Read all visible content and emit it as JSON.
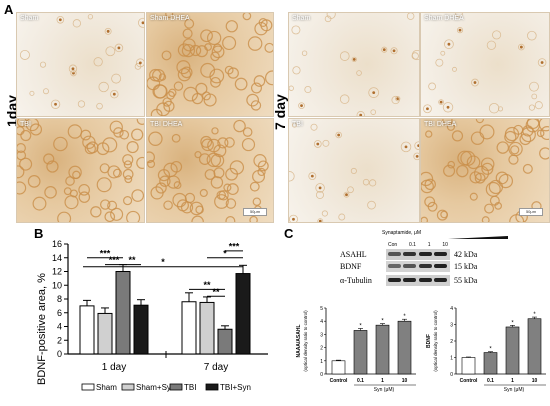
{
  "panels": {
    "A": "A",
    "B": "B",
    "C": "C"
  },
  "panel_a": {
    "row_1day": "1day",
    "row_7day": "7 day",
    "tiles_1day": [
      "Sham",
      "Sham DHEA",
      "TBI",
      "TBI DHEA"
    ],
    "tiles_7day": [
      "Sham",
      "Sham DHEA",
      "TBI",
      "TBI DHEA"
    ],
    "scale_label": "50μm",
    "colors": {
      "background_light": "#efe7da",
      "background_dense": "#e3c9a1",
      "cell": "#c98f4a"
    }
  },
  "chart_data": [
    {
      "type": "bar",
      "panel": "B",
      "ylabel": "BDNF-positive area, %",
      "ylim": [
        0,
        16
      ],
      "yticks": [
        0,
        2,
        4,
        6,
        8,
        10,
        12,
        14,
        16
      ],
      "groups": [
        "1 day",
        "7 day"
      ],
      "series": [
        {
          "name": "Sham",
          "color": "#ffffff",
          "values": [
            7.0,
            7.6
          ],
          "errors": [
            0.8,
            1.3
          ]
        },
        {
          "name": "Sham+Syn",
          "color": "#d0d0d0",
          "values": [
            5.9,
            7.5
          ],
          "errors": [
            0.8,
            0.8
          ]
        },
        {
          "name": "TBI",
          "color": "#7a7a7a",
          "values": [
            12.0,
            3.6
          ],
          "errors": [
            1.0,
            0.5
          ]
        },
        {
          "name": "TBI+Syn",
          "color": "#1a1a1a",
          "values": [
            7.1,
            11.7
          ],
          "errors": [
            0.8,
            1.2
          ]
        }
      ],
      "significance_1day": [
        "***",
        "***",
        "**"
      ],
      "significance_7day": [
        "***",
        "*",
        "*",
        "**",
        "**"
      ],
      "legend": [
        "Sham",
        "Sham+Syn",
        "TBI",
        "TBI+Syn"
      ]
    },
    {
      "type": "bar",
      "panel": "C-left",
      "ylabel": "NAAA/ASAHL",
      "ylabel2": "(optical density ratio to control)",
      "xlabel": "Syn (μM)",
      "categories": [
        "Control",
        "0.1",
        "1",
        "10"
      ],
      "values": [
        1.0,
        3.3,
        3.7,
        4.0
      ],
      "errors": [
        0.05,
        0.15,
        0.12,
        0.15
      ],
      "ylim": [
        0,
        5
      ],
      "yticks": [
        0,
        1,
        2,
        3,
        4,
        5
      ],
      "marks": [
        "",
        "*",
        "*",
        "*"
      ]
    },
    {
      "type": "bar",
      "panel": "C-right",
      "ylabel": "BDNF",
      "ylabel2": "(optical density ratio to control)",
      "xlabel": "Syn (μM)",
      "categories": [
        "Control",
        "0.1",
        "1",
        "10"
      ],
      "values": [
        1.0,
        1.3,
        2.85,
        3.35
      ],
      "errors": [
        0.03,
        0.05,
        0.1,
        0.1
      ],
      "ylim": [
        0,
        4
      ],
      "yticks": [
        0,
        1,
        2,
        3,
        4
      ],
      "marks": [
        "",
        "*",
        "*",
        "*"
      ]
    }
  ],
  "western_blot": {
    "treatment_label": "Synaptamide, μM",
    "lanes": [
      "Con",
      "0.1",
      "1",
      "10"
    ],
    "proteins": [
      {
        "name": "ASAHL",
        "kda": "42 kDa"
      },
      {
        "name": "BDNF",
        "kda": "15 kDa"
      },
      {
        "name": "α-Tubulin",
        "kda": "55 kDa"
      }
    ]
  }
}
